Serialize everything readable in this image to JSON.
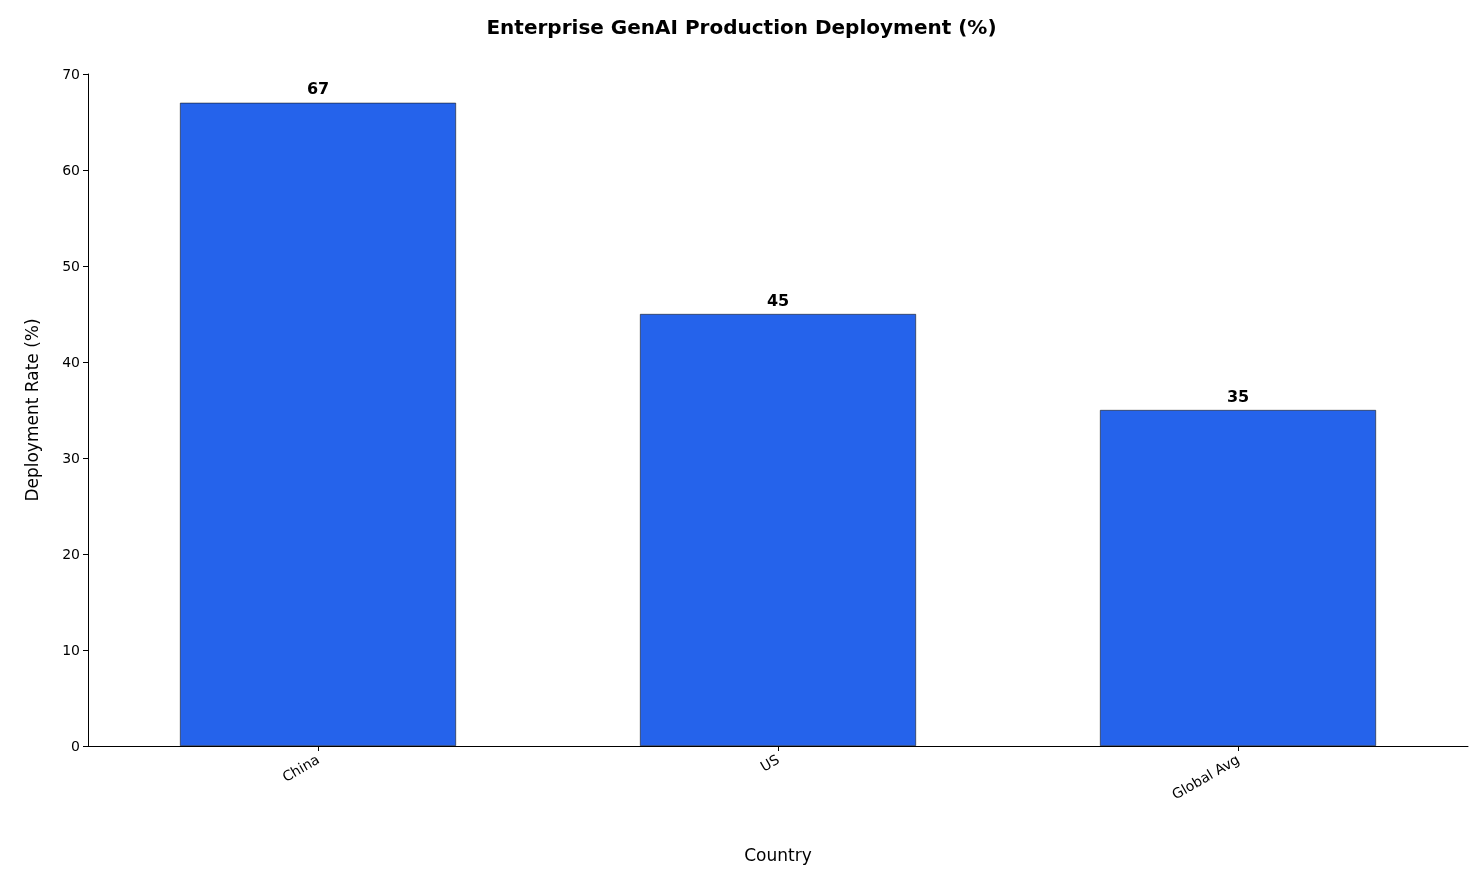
{
  "chart_data": {
    "type": "bar",
    "title": "Enterprise GenAI Production Deployment (%)",
    "xlabel": "Country",
    "ylabel": "Deployment Rate (%)",
    "categories": [
      "China",
      "US",
      "Global Avg"
    ],
    "values": [
      67,
      45,
      35
    ],
    "color": "#2563eb",
    "ylim": [
      0,
      70
    ],
    "yticks": [
      0,
      10,
      20,
      30,
      40,
      50,
      60,
      70
    ],
    "grid": false,
    "data_labels": true
  }
}
